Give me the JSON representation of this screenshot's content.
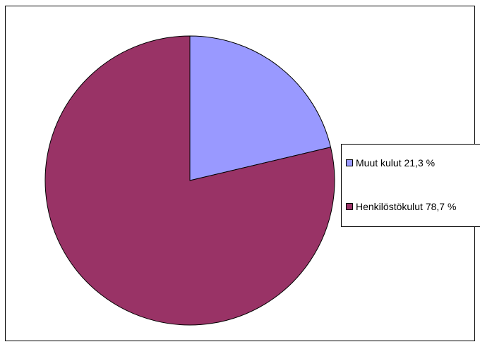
{
  "chart_data": {
    "type": "pie",
    "title": "",
    "slices": [
      {
        "label": "Muut kulut 21,3 %",
        "value": 21.3,
        "color": "#9999ff"
      },
      {
        "label": "Henkilöstökulut 78,7 %",
        "value": 78.7,
        "color": "#993366"
      }
    ],
    "legend_position": "right"
  }
}
